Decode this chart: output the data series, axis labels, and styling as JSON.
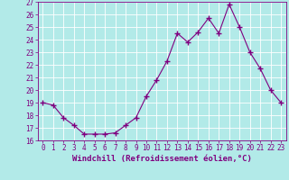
{
  "x": [
    0,
    1,
    2,
    3,
    4,
    5,
    6,
    7,
    8,
    9,
    10,
    11,
    12,
    13,
    14,
    15,
    16,
    17,
    18,
    19,
    20,
    21,
    22,
    23
  ],
  "y": [
    19.0,
    18.8,
    17.8,
    17.2,
    16.5,
    16.5,
    16.5,
    16.6,
    17.2,
    17.8,
    19.5,
    20.8,
    22.3,
    24.5,
    23.8,
    24.6,
    25.7,
    24.5,
    26.8,
    25.0,
    23.0,
    21.7,
    20.0,
    19.0
  ],
  "line_color": "#800080",
  "marker": "+",
  "marker_size": 4,
  "marker_linewidth": 1.0,
  "bg_color": "#b2eae8",
  "grid_color": "#ffffff",
  "xlabel": "Windchill (Refroidissement éolien,°C)",
  "ylabel_ticks": [
    16,
    17,
    18,
    19,
    20,
    21,
    22,
    23,
    24,
    25,
    26,
    27
  ],
  "xlim": [
    -0.5,
    23.5
  ],
  "ylim": [
    16,
    27
  ],
  "tick_color": "#800080",
  "label_fontsize": 6.5,
  "tick_fontsize": 5.5
}
